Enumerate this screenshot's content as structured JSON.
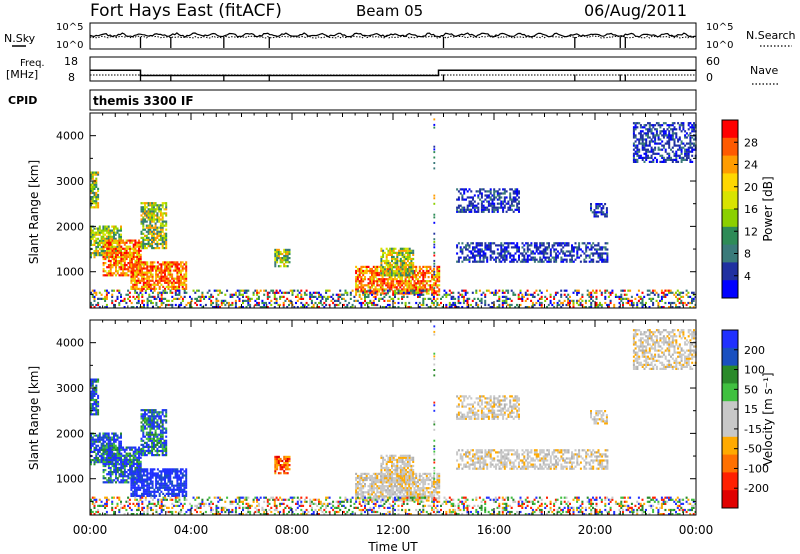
{
  "header": {
    "title": "Fort Hays East (fitACF)",
    "beam": "Beam 05",
    "date": "06/Aug/2011"
  },
  "top_panels": {
    "nsky_label": "N.Sky",
    "nsearch_label": "N.Search",
    "noise_ticks": [
      "10^5",
      "10^0"
    ],
    "freq_label": "Freq.",
    "freq_unit": "[MHz]",
    "freq_ticks": [
      "18",
      "8"
    ],
    "nave_label": "Nave",
    "nave_ticks": [
      "60",
      "0"
    ],
    "cpid_label": "CPID",
    "cpid_text": "themis 3300 IF"
  },
  "power_panel": {
    "ylabel": "Slant Range [km]",
    "colorbar_label": "Power [dB]",
    "colorbar_ticks": [
      "28",
      "24",
      "20",
      "16",
      "12",
      "8",
      "4"
    ],
    "colorbar_colors": [
      "#ff0000",
      "#ff5a00",
      "#ff9c00",
      "#ffd700",
      "#d8e300",
      "#8bcf00",
      "#2e8b57",
      "#3a7a7a",
      "#2030a0",
      "#0000ff"
    ]
  },
  "velocity_panel": {
    "ylabel": "Slant Range [km]",
    "colorbar_label": "Velocity [m s⁻¹]",
    "colorbar_ticks": [
      "200",
      "100",
      "50",
      "15",
      "-15",
      "-50",
      "-100",
      "-200"
    ],
    "colorbar_colors": [
      "#2030ff",
      "#1a50c0",
      "#2a8a2a",
      "#40c040",
      "#c8c8c8",
      "#c8c8c8",
      "#ffaa00",
      "#ff7000",
      "#ff2000",
      "#e00000"
    ]
  },
  "x_axis": {
    "label": "Time UT",
    "ticks": [
      "00:00",
      "04:00",
      "08:00",
      "12:00",
      "16:00",
      "20:00",
      "00:00"
    ]
  },
  "chart_data": {
    "type": "heatmap",
    "x_unit": "hours UT",
    "xlim": [
      0,
      24
    ],
    "ylim": [
      200,
      4500
    ],
    "y_ticks": [
      1000,
      2000,
      3000,
      4000
    ],
    "freq_segments": [
      {
        "start": 0,
        "end": 2.0,
        "freq": 12.5
      },
      {
        "start": 2.0,
        "end": 13.8,
        "freq": 10.3
      },
      {
        "start": 13.8,
        "end": 24,
        "freq": 12.5
      }
    ],
    "echo_regions": [
      {
        "t0": 0.0,
        "t1": 0.3,
        "r0": 2400,
        "r1": 3200,
        "power": "mid",
        "vel": "pos"
      },
      {
        "t0": 0.0,
        "t1": 1.2,
        "r0": 1300,
        "r1": 2000,
        "power": "mid",
        "vel": "pos"
      },
      {
        "t0": 0.5,
        "t1": 2.0,
        "r0": 900,
        "r1": 1700,
        "power": "high",
        "vel": "pos"
      },
      {
        "t0": 1.6,
        "t1": 3.8,
        "r0": 600,
        "r1": 1200,
        "power": "high",
        "vel": "strong_pos"
      },
      {
        "t0": 2.0,
        "t1": 3.0,
        "r0": 1500,
        "r1": 2500,
        "power": "mid",
        "vel": "pos"
      },
      {
        "t0": 7.3,
        "t1": 7.9,
        "r0": 1100,
        "r1": 1500,
        "power": "mid",
        "vel": "neg"
      },
      {
        "t0": 10.5,
        "t1": 13.8,
        "r0": 500,
        "r1": 1100,
        "power": "high",
        "vel": "zero"
      },
      {
        "t0": 11.5,
        "t1": 12.8,
        "r0": 900,
        "r1": 1500,
        "power": "mid",
        "vel": "zero"
      },
      {
        "t0": 14.5,
        "t1": 20.5,
        "r0": 1200,
        "r1": 1650,
        "power": "low",
        "vel": "zero"
      },
      {
        "t0": 14.5,
        "t1": 17.0,
        "r0": 2300,
        "r1": 2800,
        "power": "low",
        "vel": "zero"
      },
      {
        "t0": 19.8,
        "t1": 20.5,
        "r0": 2200,
        "r1": 2500,
        "power": "low",
        "vel": "zero"
      },
      {
        "t0": 21.5,
        "t1": 24.0,
        "r0": 3400,
        "r1": 4300,
        "power": "low",
        "vel": "zero"
      },
      {
        "t0": 0.0,
        "t1": 24.0,
        "r0": 200,
        "r1": 600,
        "power": "ground",
        "vel": "ground"
      }
    ]
  }
}
